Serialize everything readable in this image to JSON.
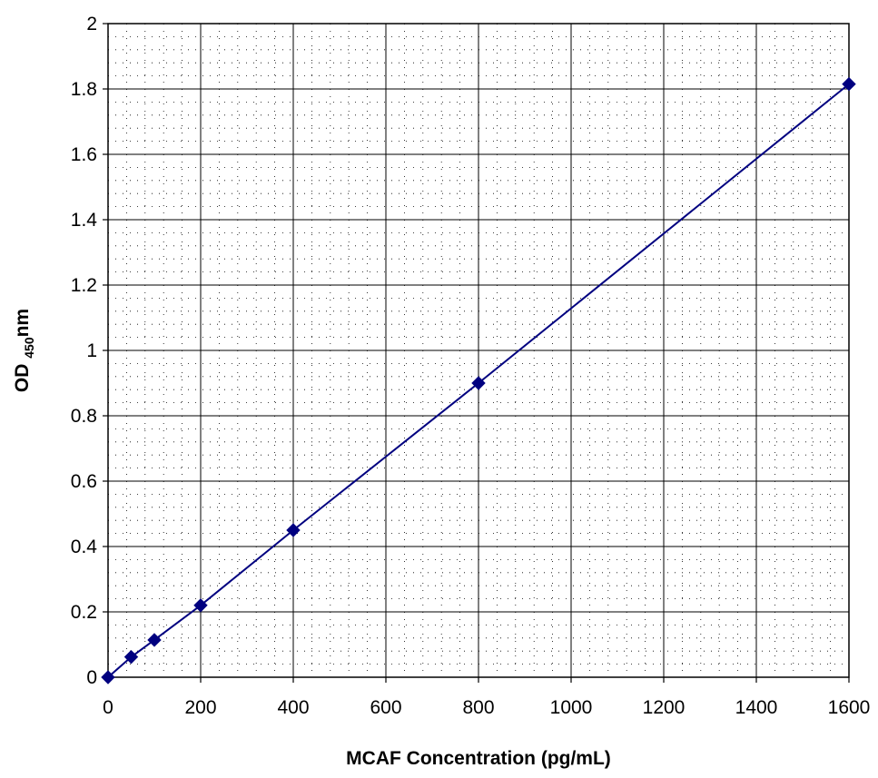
{
  "chart_data": {
    "type": "scatter",
    "title": "",
    "xlabel": "MCAF Concentration (pg/mL)",
    "ylabel": {
      "prefix": "OD ",
      "subscript": "450",
      "suffix": "nm"
    },
    "xlim": [
      0,
      1600
    ],
    "ylim": [
      0,
      2
    ],
    "xticks": [
      0,
      200,
      400,
      600,
      800,
      1000,
      1200,
      1400,
      1600
    ],
    "yticks": [
      0,
      0.2,
      0.4,
      0.6,
      0.8,
      1,
      1.2,
      1.4,
      1.6,
      1.8,
      2
    ],
    "xtick_labels": [
      "0",
      "200",
      "400",
      "600",
      "800",
      "1000",
      "1200",
      "1400",
      "1600"
    ],
    "ytick_labels": [
      "0",
      "0.2",
      "0.4",
      "0.6",
      "0.8",
      "1",
      "1.2",
      "1.4",
      "1.6",
      "1.8",
      "2"
    ],
    "grid": true,
    "minor_grid": true,
    "marker": "diamond",
    "series": [
      {
        "color": "#000080",
        "x": [
          0,
          50,
          100,
          200,
          400,
          800,
          1600
        ],
        "y": [
          0,
          0.062,
          0.114,
          0.22,
          0.45,
          0.9,
          1.815
        ]
      }
    ]
  }
}
